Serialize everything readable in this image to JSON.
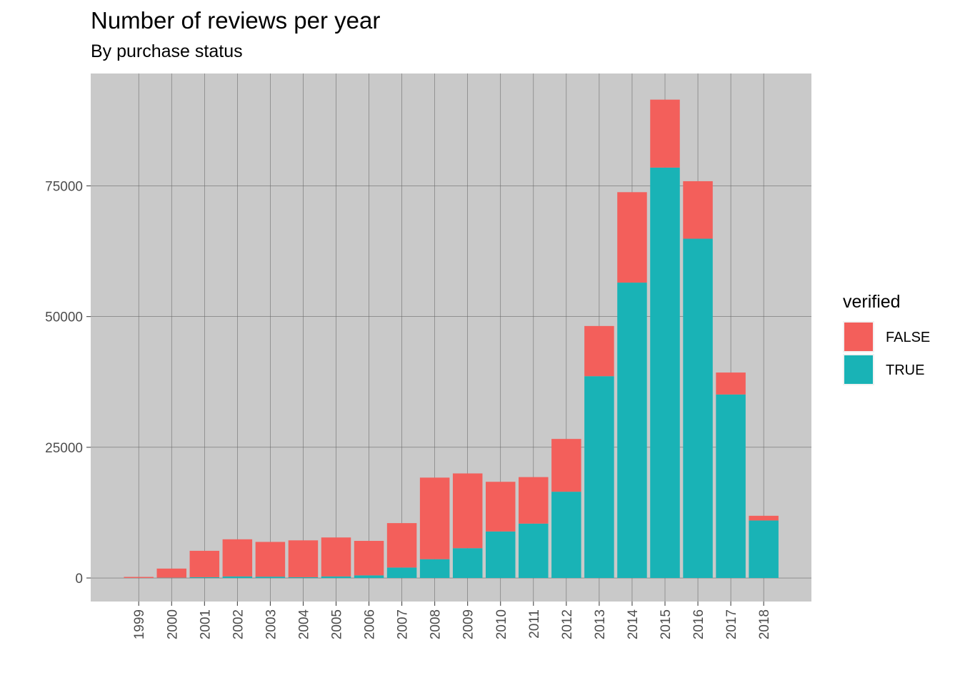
{
  "chart_data": {
    "type": "bar",
    "stacked": true,
    "title": "Number of reviews per year",
    "subtitle": "By purchase status",
    "xlabel": "",
    "ylabel": "",
    "categories": [
      "1999",
      "2000",
      "2001",
      "2002",
      "2003",
      "2004",
      "2005",
      "2006",
      "2007",
      "2008",
      "2009",
      "2010",
      "2011",
      "2012",
      "2013",
      "2014",
      "2015",
      "2016",
      "2017",
      "2018"
    ],
    "series": [
      {
        "name": "TRUE",
        "color": "#19B3B6",
        "values": [
          10,
          50,
          150,
          300,
          250,
          150,
          300,
          500,
          2000,
          3600,
          5700,
          8900,
          10400,
          16500,
          38600,
          56500,
          78500,
          64900,
          35100,
          11000
        ]
      },
      {
        "name": "FALSE",
        "color": "#F35F5B",
        "values": [
          190,
          1750,
          5050,
          7100,
          6650,
          7050,
          7450,
          6600,
          8500,
          15600,
          14300,
          9500,
          8900,
          10100,
          9600,
          17300,
          13000,
          11000,
          4200,
          900
        ]
      }
    ],
    "ylim": [
      -4500,
      96500
    ],
    "yticks": [
      0,
      25000,
      50000,
      75000
    ],
    "ytick_labels": [
      "0",
      "25000",
      "50000",
      "75000"
    ],
    "grid": true,
    "legend": {
      "title": "verified",
      "position": "right",
      "entries": [
        "FALSE",
        "TRUE"
      ]
    }
  }
}
